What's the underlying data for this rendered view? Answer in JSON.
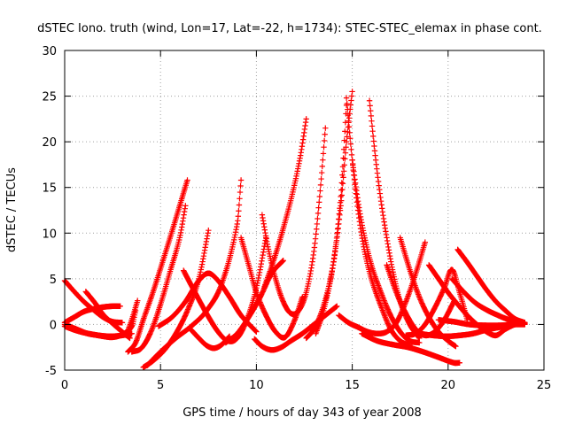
{
  "chart_data": {
    "type": "scatter",
    "title": "dSTEC Iono. truth (wind, Lon=17, Lat=-22, h=1734): STEC-STEC_elemax in phase cont.",
    "xlabel": "GPS time / hours of day 343 of year 2008",
    "ylabel": "dSTEC  / TECUs",
    "xlim": [
      0,
      25
    ],
    "ylim": [
      -5,
      30
    ],
    "x_ticks": [
      "0",
      "5",
      "10",
      "15",
      "20",
      "25"
    ],
    "y_ticks": [
      "-5",
      "0",
      "5",
      "10",
      "15",
      "20",
      "25",
      "30"
    ],
    "grid": true,
    "marker": "+",
    "color": "#ff0000",
    "series": [
      {
        "x": [
          0.0,
          0.5,
          1.0,
          1.5,
          2.0,
          2.5,
          3.0
        ],
        "y": [
          4.8,
          3.6,
          2.5,
          1.6,
          0.8,
          0.3,
          0.2
        ]
      },
      {
        "x": [
          0.0,
          0.5,
          1.0,
          1.5,
          2.0,
          2.5,
          2.9
        ],
        "y": [
          0.2,
          0.8,
          1.4,
          1.7,
          1.9,
          2.0,
          2.0
        ]
      },
      {
        "x": [
          0.0,
          0.5,
          1.0,
          1.5,
          2.0,
          2.5,
          3.0,
          3.5,
          3.7
        ],
        "y": [
          -0.2,
          -0.6,
          -0.9,
          -1.1,
          -1.3,
          -1.4,
          -1.1,
          -0.2,
          1.5
        ]
      },
      {
        "x": [
          0.0,
          0.6,
          1.2,
          1.8,
          2.4,
          3.0,
          3.5
        ],
        "y": [
          0.0,
          -0.5,
          -1.0,
          -1.2,
          -1.3,
          -1.2,
          -1.0
        ]
      },
      {
        "x": [
          1.1,
          1.6,
          2.0,
          2.5,
          3.0,
          3.4
        ],
        "y": [
          3.6,
          2.3,
          1.1,
          0.1,
          -0.8,
          -1.5
        ]
      },
      {
        "x": [
          3.2,
          3.5,
          3.8
        ],
        "y": [
          -1.2,
          0.5,
          2.6
        ]
      },
      {
        "x": [
          3.3,
          3.7,
          4.1,
          4.6,
          5.1,
          5.6,
          6.0,
          6.4
        ],
        "y": [
          -3.0,
          -2.0,
          0.5,
          3.5,
          6.8,
          10.2,
          13.0,
          15.8
        ]
      },
      {
        "x": [
          3.5,
          4.0,
          4.5,
          5.0,
          5.5,
          6.0,
          6.3
        ],
        "y": [
          -3.0,
          -2.6,
          -0.8,
          2.2,
          5.8,
          9.5,
          13.0
        ]
      },
      {
        "x": [
          4.1,
          4.6,
          5.2,
          5.8,
          6.4,
          7.0,
          7.5
        ],
        "y": [
          -4.7,
          -4.0,
          -2.8,
          -1.0,
          1.5,
          5.0,
          10.3
        ]
      },
      {
        "x": [
          4.3,
          5.0,
          5.8,
          6.6,
          7.4,
          8.2,
          9.0,
          9.2
        ],
        "y": [
          -4.5,
          -3.0,
          -1.5,
          -0.2,
          1.5,
          4.5,
          11.0,
          15.8
        ]
      },
      {
        "x": [
          4.9,
          5.6,
          6.3,
          7.0,
          7.5,
          8.0,
          8.6,
          9.2,
          10.0
        ],
        "y": [
          -0.2,
          0.8,
          2.5,
          4.8,
          5.6,
          4.8,
          3.0,
          1.0,
          -0.8
        ]
      },
      {
        "x": [
          6.2,
          6.8,
          7.4,
          8.0,
          8.5,
          9.0,
          9.5,
          10.0,
          10.5
        ],
        "y": [
          5.9,
          3.5,
          1.2,
          -0.8,
          -1.8,
          -1.5,
          0.5,
          4.0,
          9.5
        ]
      },
      {
        "x": [
          6.6,
          7.0,
          7.4,
          7.8,
          8.2,
          8.6
        ],
        "y": [
          -0.6,
          -1.5,
          -2.3,
          -2.6,
          -2.2,
          -1.3
        ]
      },
      {
        "x": [
          8.4,
          9.0,
          9.6,
          10.2,
          10.8,
          11.4
        ],
        "y": [
          -2.0,
          -1.0,
          0.8,
          3.0,
          5.6,
          7.0
        ]
      },
      {
        "x": [
          9.2,
          9.6,
          10.0,
          10.5,
          11.0,
          11.5,
          12.0,
          12.4
        ],
        "y": [
          9.5,
          6.5,
          3.5,
          1.0,
          -0.8,
          -1.4,
          0.5,
          3.0
        ]
      },
      {
        "x": [
          9.9,
          10.3,
          10.8,
          11.3,
          11.8,
          12.4,
          13.0,
          13.6,
          14.2
        ],
        "y": [
          -1.6,
          -2.4,
          -2.8,
          -2.5,
          -1.8,
          -1.0,
          0.0,
          1.0,
          2.0
        ]
      },
      {
        "x": [
          10.3,
          10.6,
          11.0,
          11.4,
          11.8,
          12.2,
          12.6,
          13.0,
          13.3,
          13.6
        ],
        "y": [
          12.0,
          8.5,
          5.0,
          2.5,
          1.2,
          1.5,
          3.5,
          8.0,
          14.0,
          21.5
        ]
      },
      {
        "x": [
          10.4,
          10.9,
          11.4,
          11.9,
          12.3,
          12.6
        ],
        "y": [
          4.0,
          7.0,
          10.5,
          14.5,
          18.5,
          22.5
        ]
      },
      {
        "x": [
          12.6,
          13.0,
          13.5,
          14.0,
          14.4,
          14.7,
          15.0
        ],
        "y": [
          -1.5,
          -0.5,
          2.0,
          6.5,
          13.0,
          20.0,
          25.5
        ]
      },
      {
        "x": [
          13.1,
          13.5,
          14.0,
          14.4,
          14.7
        ],
        "y": [
          -1.0,
          1.5,
          6.5,
          14.0,
          24.0
        ]
      },
      {
        "x": [
          14.7,
          15.0,
          15.3,
          15.6,
          16.0,
          16.5,
          17.0,
          17.5,
          18.0
        ],
        "y": [
          24.8,
          18.0,
          12.5,
          8.5,
          5.0,
          2.0,
          -0.5,
          -1.8,
          -2.3
        ]
      },
      {
        "x": [
          15.0,
          15.3,
          15.6,
          16.0,
          16.5,
          17.0,
          17.5,
          18.0,
          18.5
        ],
        "y": [
          18.0,
          13.5,
          10.0,
          6.5,
          3.5,
          1.0,
          -0.8,
          -1.8,
          -2.0
        ]
      },
      {
        "x": [
          15.9,
          16.2,
          16.5,
          16.8,
          17.1,
          17.5,
          18.0,
          18.5
        ],
        "y": [
          24.5,
          18.5,
          13.5,
          9.5,
          6.0,
          2.5,
          0.0,
          -1.5
        ]
      },
      {
        "x": [
          14.3,
          14.8,
          15.3,
          15.8,
          16.3,
          16.8,
          17.3,
          17.8,
          18.3,
          18.8
        ],
        "y": [
          1.0,
          0.2,
          -0.3,
          -0.8,
          -1.0,
          -0.8,
          0.2,
          2.5,
          5.5,
          9.0
        ]
      },
      {
        "x": [
          16.8,
          17.3,
          17.8,
          18.3,
          18.8,
          19.3,
          19.8,
          20.3
        ],
        "y": [
          6.5,
          3.5,
          1.2,
          -0.5,
          -1.2,
          -0.8,
          0.5,
          2.5
        ]
      },
      {
        "x": [
          17.5,
          18.0,
          18.5,
          19.0,
          19.5,
          20.0,
          20.4
        ],
        "y": [
          9.5,
          6.0,
          3.0,
          0.8,
          -0.8,
          -1.8,
          -2.4
        ]
      },
      {
        "x": [
          17.8,
          18.3,
          18.8,
          19.3,
          19.8,
          20.2,
          20.6,
          21.0
        ],
        "y": [
          -1.2,
          -1.0,
          0.0,
          1.8,
          4.0,
          6.0,
          3.5,
          0.5
        ]
      },
      {
        "x": [
          15.5,
          16.3,
          17.1,
          17.9,
          18.7,
          19.5,
          20.3,
          20.6
        ],
        "y": [
          -1.0,
          -1.8,
          -2.2,
          -2.5,
          -3.0,
          -3.6,
          -4.2,
          -4.2
        ]
      },
      {
        "x": [
          19.0,
          19.5,
          20.0,
          20.5,
          21.0,
          21.5,
          22.0,
          22.5,
          23.0,
          23.5,
          24.0
        ],
        "y": [
          6.5,
          5.0,
          3.5,
          2.2,
          1.0,
          0.0,
          -0.8,
          -1.2,
          -0.5,
          0.0,
          0.2
        ]
      },
      {
        "x": [
          20.5,
          21.0,
          21.5,
          22.0,
          22.5,
          23.0,
          23.5,
          24.0
        ],
        "y": [
          8.2,
          6.8,
          5.3,
          3.8,
          2.5,
          1.5,
          0.6,
          0.2
        ]
      },
      {
        "x": [
          20.2,
          20.8,
          21.4,
          22.0,
          22.6,
          23.2,
          23.8,
          24.0
        ],
        "y": [
          5.0,
          3.6,
          2.4,
          1.6,
          1.0,
          0.5,
          0.2,
          0.1
        ]
      },
      {
        "x": [
          18.5,
          19.2,
          19.9,
          20.6,
          21.3,
          22.0,
          22.7,
          23.4,
          24.0
        ],
        "y": [
          -1.0,
          -1.2,
          -1.3,
          -1.2,
          -1.0,
          -0.6,
          -0.3,
          0.0,
          0.1
        ]
      },
      {
        "x": [
          19.5,
          20.3,
          21.1,
          21.9,
          22.7,
          23.5,
          24.0
        ],
        "y": [
          0.5,
          0.3,
          0.0,
          -0.1,
          -0.1,
          0.0,
          0.0
        ]
      }
    ]
  }
}
